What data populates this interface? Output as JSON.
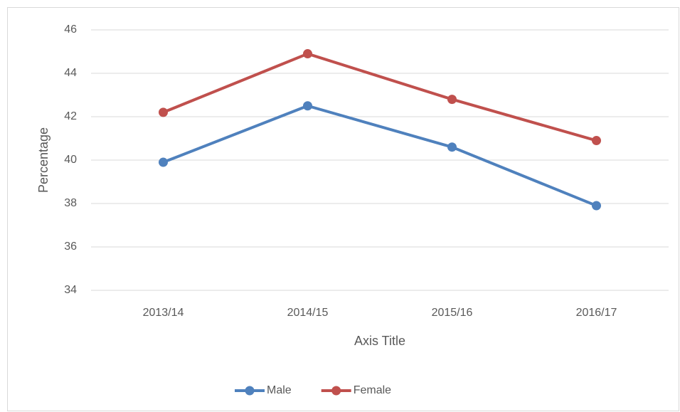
{
  "chart_data": {
    "type": "line",
    "x_label": "Axis Title",
    "y_label": "Percentage",
    "categories": [
      "2013/14",
      "2014/15",
      "2015/16",
      "2016/17"
    ],
    "series": [
      {
        "name": "Male",
        "color": "#4f81bd",
        "values": [
          39.9,
          42.5,
          40.6,
          37.9
        ]
      },
      {
        "name": "Female",
        "color": "#c0504d",
        "values": [
          42.2,
          44.9,
          42.8,
          40.9
        ]
      }
    ],
    "ylim": [
      34,
      46
    ],
    "yticks": [
      34,
      36,
      38,
      40,
      42,
      44,
      46
    ],
    "grid": true,
    "legend": "bottom"
  }
}
